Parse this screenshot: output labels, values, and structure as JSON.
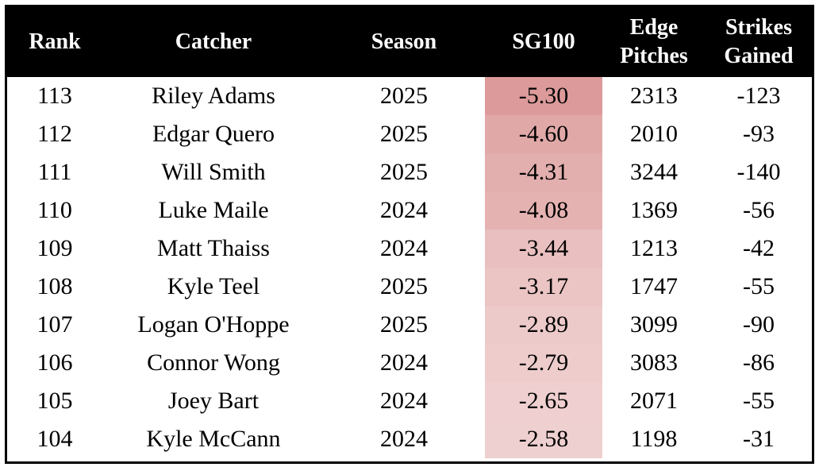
{
  "colors": {
    "header_bg": "#000000",
    "header_text": "#ffffff",
    "heat_max": "#dc9a9a",
    "heat_min": "#efd0d0"
  },
  "headers": [
    {
      "lines": [
        "Rank"
      ]
    },
    {
      "lines": [
        "Catcher"
      ]
    },
    {
      "lines": [
        "Season"
      ]
    },
    {
      "lines": [
        "SG100"
      ]
    },
    {
      "lines": [
        "Edge",
        "Pitches"
      ]
    },
    {
      "lines": [
        "Strikes",
        "Gained"
      ]
    }
  ],
  "chart_data": {
    "type": "table",
    "columns": [
      "Rank",
      "Catcher",
      "Season",
      "SG100",
      "Edge Pitches",
      "Strikes Gained"
    ],
    "rows": [
      {
        "rank": "113",
        "catcher": "Riley Adams",
        "season": "2025",
        "sg100": "-5.30",
        "edge_pitches": "2313",
        "strikes_gained": "-123"
      },
      {
        "rank": "112",
        "catcher": "Edgar Quero",
        "season": "2025",
        "sg100": "-4.60",
        "edge_pitches": "2010",
        "strikes_gained": "-93"
      },
      {
        "rank": "111",
        "catcher": "Will Smith",
        "season": "2025",
        "sg100": "-4.31",
        "edge_pitches": "3244",
        "strikes_gained": "-140"
      },
      {
        "rank": "110",
        "catcher": "Luke Maile",
        "season": "2024",
        "sg100": "-4.08",
        "edge_pitches": "1369",
        "strikes_gained": "-56"
      },
      {
        "rank": "109",
        "catcher": "Matt Thaiss",
        "season": "2024",
        "sg100": "-3.44",
        "edge_pitches": "1213",
        "strikes_gained": "-42"
      },
      {
        "rank": "108",
        "catcher": "Kyle Teel",
        "season": "2025",
        "sg100": "-3.17",
        "edge_pitches": "1747",
        "strikes_gained": "-55"
      },
      {
        "rank": "107",
        "catcher": "Logan O'Hoppe",
        "season": "2025",
        "sg100": "-2.89",
        "edge_pitches": "3099",
        "strikes_gained": "-90"
      },
      {
        "rank": "106",
        "catcher": "Connor Wong",
        "season": "2024",
        "sg100": "-2.79",
        "edge_pitches": "3083",
        "strikes_gained": "-86"
      },
      {
        "rank": "105",
        "catcher": "Joey Bart",
        "season": "2024",
        "sg100": "-2.65",
        "edge_pitches": "2071",
        "strikes_gained": "-55"
      },
      {
        "rank": "104",
        "catcher": "Kyle McCann",
        "season": "2024",
        "sg100": "-2.58",
        "edge_pitches": "1198",
        "strikes_gained": "-31"
      }
    ]
  }
}
